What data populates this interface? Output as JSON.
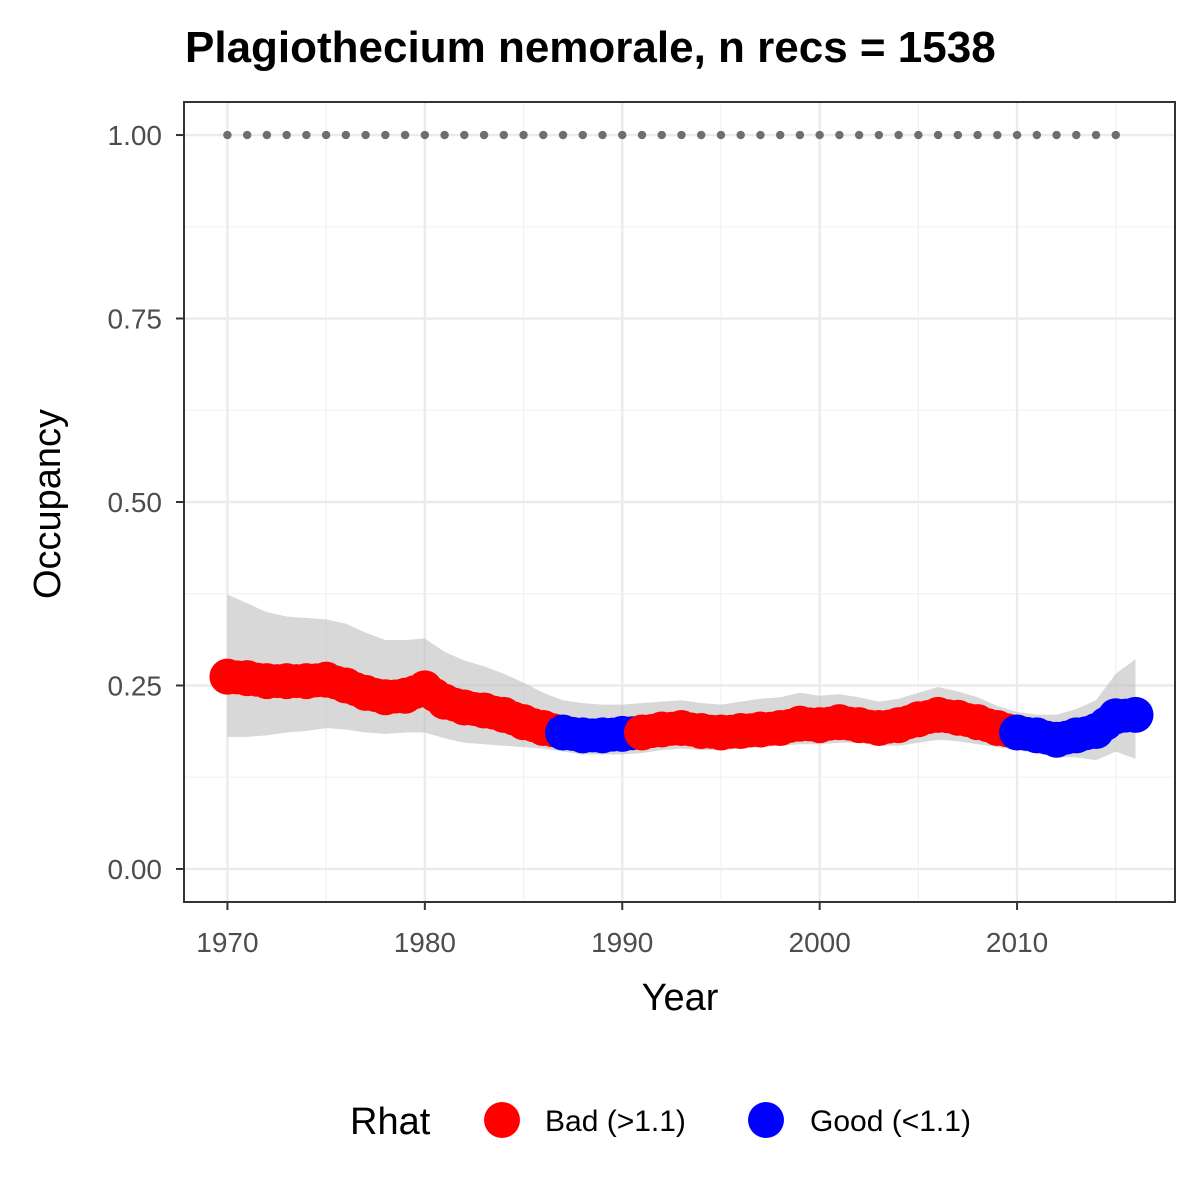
{
  "chart_data": {
    "type": "line",
    "title": "Plagiothecium nemorale, n recs = 1538",
    "xlabel": "Year",
    "ylabel": "Occupancy",
    "xlim": [
      1967.8,
      2018
    ],
    "ylim": [
      -0.045,
      1.045
    ],
    "x_ticks": [
      1970,
      1980,
      1990,
      2000,
      2010
    ],
    "y_ticks": [
      0,
      0.25,
      0.5,
      0.75,
      1
    ],
    "x_tick_labels": [
      "1970",
      "1980",
      "1990",
      "2000",
      "2010"
    ],
    "y_tick_labels": [
      "0.00",
      "0.25",
      "0.50",
      "0.75",
      "1.00"
    ],
    "grid": true,
    "legend": {
      "title": "Rhat",
      "position": "bottom",
      "entries": [
        {
          "label": "Bad (>1.1)",
          "color": "#ff0000"
        },
        {
          "label": "Good (<1.1)",
          "color": "#0000ff"
        }
      ]
    },
    "colors": {
      "bad": "#ff0000",
      "good": "#0000ff",
      "ribbon": "#bebebe",
      "reference": "#6e6e6e"
    },
    "reference_line": {
      "y": 1.0,
      "x": [
        1970,
        1971,
        1972,
        1973,
        1974,
        1975,
        1976,
        1977,
        1978,
        1979,
        1980,
        1981,
        1982,
        1983,
        1984,
        1985,
        1986,
        1987,
        1988,
        1989,
        1990,
        1991,
        1992,
        1993,
        1994,
        1995,
        1996,
        1997,
        1998,
        1999,
        2000,
        2001,
        2002,
        2003,
        2004,
        2005,
        2006,
        2007,
        2008,
        2009,
        2010,
        2011,
        2012,
        2013,
        2014,
        2015
      ]
    },
    "x": [
      1970,
      1971,
      1972,
      1973,
      1974,
      1975,
      1976,
      1977,
      1978,
      1979,
      1980,
      1981,
      1982,
      1983,
      1984,
      1985,
      1986,
      1987,
      1988,
      1989,
      1990,
      1991,
      1992,
      1993,
      1994,
      1995,
      1996,
      1997,
      1998,
      1999,
      2000,
      2001,
      2002,
      2003,
      2004,
      2005,
      2006,
      2007,
      2008,
      2009,
      2010,
      2011,
      2012,
      2013,
      2014,
      2015,
      2016
    ],
    "occupancy": [
      0.262,
      0.26,
      0.256,
      0.256,
      0.256,
      0.258,
      0.25,
      0.24,
      0.234,
      0.236,
      0.246,
      0.228,
      0.22,
      0.216,
      0.21,
      0.2,
      0.192,
      0.186,
      0.182,
      0.182,
      0.184,
      0.186,
      0.19,
      0.192,
      0.188,
      0.186,
      0.188,
      0.19,
      0.192,
      0.198,
      0.196,
      0.2,
      0.196,
      0.192,
      0.196,
      0.204,
      0.21,
      0.206,
      0.2,
      0.192,
      0.186,
      0.182,
      0.176,
      0.182,
      0.188,
      0.208,
      0.21
    ],
    "lower": [
      0.18,
      0.18,
      0.182,
      0.186,
      0.188,
      0.192,
      0.19,
      0.186,
      0.184,
      0.186,
      0.186,
      0.178,
      0.172,
      0.17,
      0.168,
      0.166,
      0.164,
      0.16,
      0.156,
      0.156,
      0.156,
      0.158,
      0.162,
      0.164,
      0.162,
      0.162,
      0.164,
      0.166,
      0.168,
      0.17,
      0.17,
      0.172,
      0.172,
      0.168,
      0.168,
      0.172,
      0.176,
      0.174,
      0.17,
      0.166,
      0.162,
      0.158,
      0.152,
      0.152,
      0.148,
      0.16,
      0.15
    ],
    "upper": [
      0.374,
      0.362,
      0.35,
      0.344,
      0.342,
      0.34,
      0.334,
      0.322,
      0.312,
      0.312,
      0.314,
      0.296,
      0.284,
      0.276,
      0.266,
      0.254,
      0.24,
      0.23,
      0.226,
      0.224,
      0.224,
      0.226,
      0.228,
      0.23,
      0.226,
      0.224,
      0.228,
      0.232,
      0.234,
      0.24,
      0.236,
      0.238,
      0.234,
      0.228,
      0.232,
      0.24,
      0.248,
      0.242,
      0.234,
      0.222,
      0.214,
      0.21,
      0.21,
      0.218,
      0.23,
      0.266,
      0.286
    ],
    "rhat": [
      "bad",
      "bad",
      "bad",
      "bad",
      "bad",
      "bad",
      "bad",
      "bad",
      "bad",
      "bad",
      "bad",
      "bad",
      "bad",
      "bad",
      "bad",
      "bad",
      "bad",
      "good",
      "good",
      "good",
      "good",
      "bad",
      "bad",
      "bad",
      "bad",
      "bad",
      "bad",
      "bad",
      "bad",
      "bad",
      "bad",
      "bad",
      "bad",
      "bad",
      "bad",
      "bad",
      "bad",
      "bad",
      "bad",
      "bad",
      "good",
      "good",
      "good",
      "good",
      "good",
      "good",
      "good"
    ]
  }
}
